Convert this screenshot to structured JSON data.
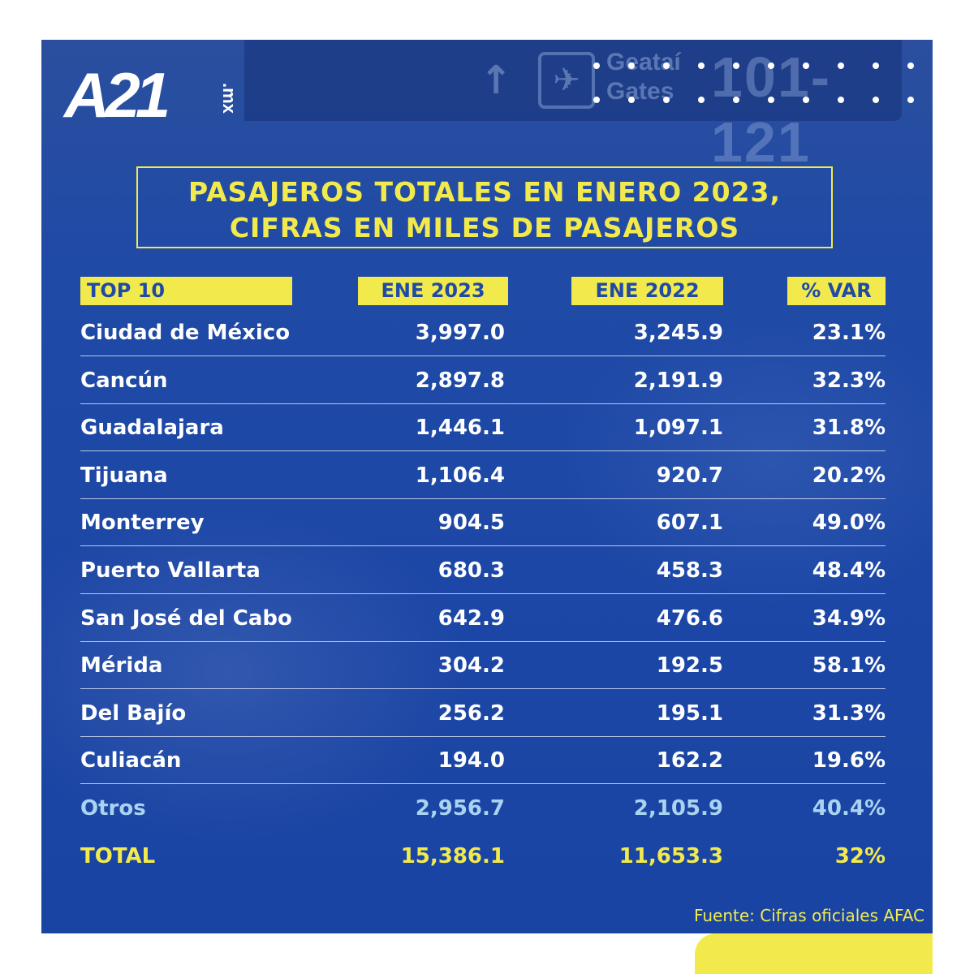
{
  "brand": {
    "logo_main": "A21",
    "logo_sub": ".mx"
  },
  "background_sign": {
    "arrow": "↑",
    "plane": "✈",
    "line1": "Geataí",
    "line2": "Gates",
    "number": "101-121"
  },
  "title": {
    "line1": "PASAJEROS TOTALES EN ENERO 2023,",
    "line2": "CIFRAS EN MILES DE PASAJEROS"
  },
  "chart_data": {
    "type": "table",
    "title": "PASAJEROS TOTALES EN ENERO 2023, CIFRAS EN MILES DE PASAJEROS",
    "columns": [
      "TOP 10",
      "ENE 2023",
      "ENE 2022",
      "% VAR"
    ],
    "rows": [
      [
        "Ciudad de México",
        "3,997.0",
        "3,245.9",
        "23.1%"
      ],
      [
        "Cancún",
        "2,897.8",
        "2,191.9",
        "32.3%"
      ],
      [
        "Guadalajara",
        "1,446.1",
        "1,097.1",
        "31.8%"
      ],
      [
        "Tijuana",
        "1,106.4",
        "920.7",
        "20.2%"
      ],
      [
        "Monterrey",
        "904.5",
        "607.1",
        "49.0%"
      ],
      [
        "Puerto Vallarta",
        "680.3",
        "458.3",
        "48.4%"
      ],
      [
        "San José del Cabo",
        "642.9",
        "476.6",
        "34.9%"
      ],
      [
        "Mérida",
        "304.2",
        "192.5",
        "58.1%"
      ],
      [
        "Del Bajío",
        "256.2",
        "195.1",
        "31.3%"
      ],
      [
        "Culiacán",
        "194.0",
        "162.2",
        "19.6%"
      ],
      [
        "Otros",
        "2,956.7",
        "2,105.9",
        "40.4%"
      ],
      [
        "TOTAL",
        "15,386.1",
        "11,653.3",
        "32%"
      ]
    ]
  },
  "source": "Fuente: Cifras oficiales AFAC",
  "colors": {
    "background": "#1f4aa6",
    "accent": "#f2ea4d",
    "otros_text": "#a9d3f0",
    "text": "#ffffff"
  }
}
